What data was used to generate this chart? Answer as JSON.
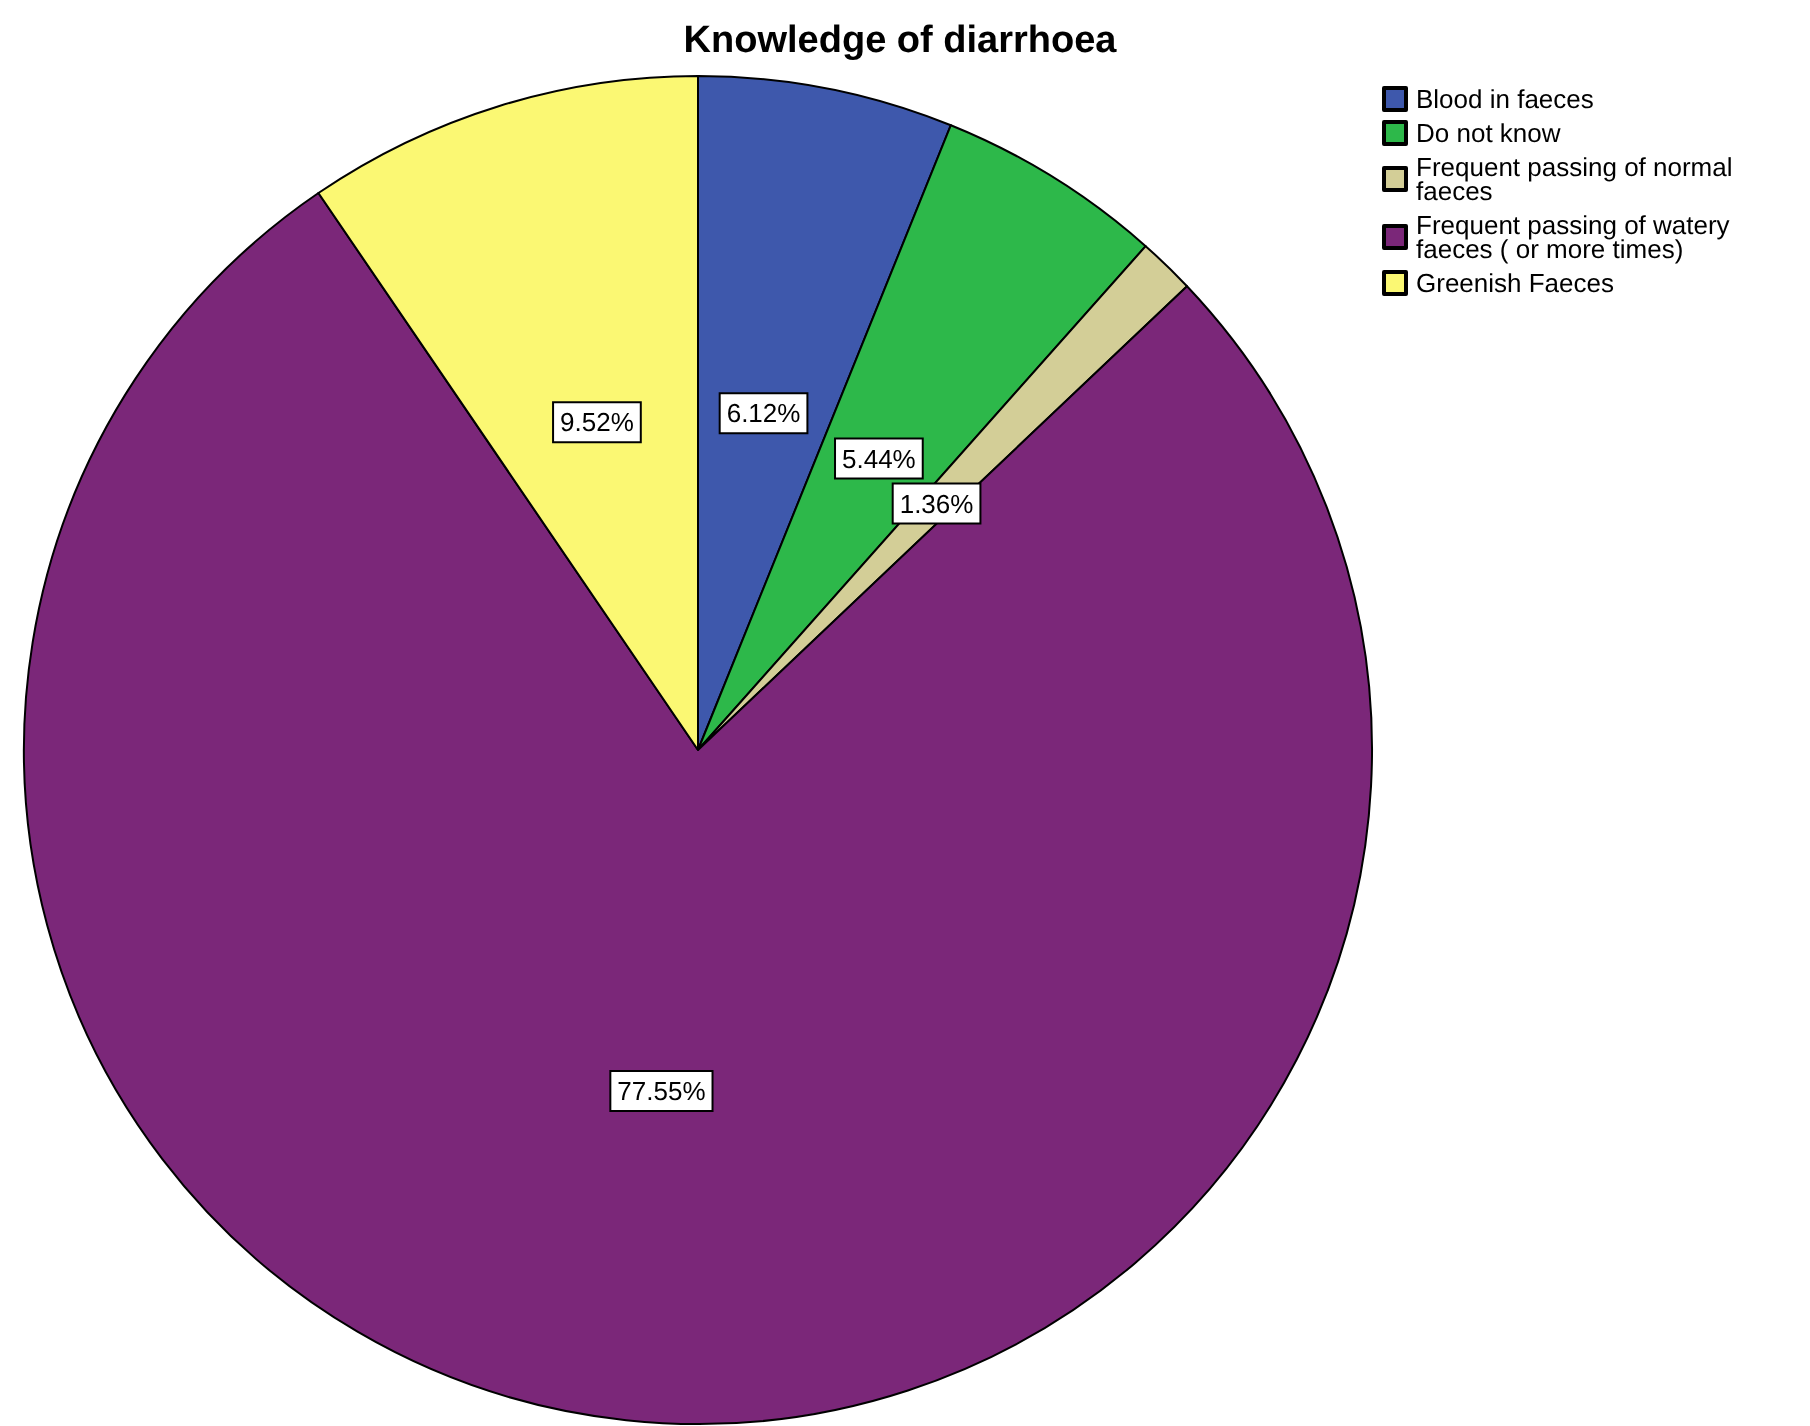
{
  "chart_data": {
    "type": "pie",
    "title": "Knowledge of diarrhoea",
    "categories": [
      "Blood in faeces",
      "Do not know",
      "Frequent passing of normal faeces",
      "Frequent passing of watery faeces ( or more times)",
      "Greenish Faeces"
    ],
    "values": [
      6.12,
      5.44,
      1.36,
      77.55,
      9.52
    ],
    "value_labels": [
      "6.12%",
      "5.44%",
      "1.36%",
      "77.55%",
      "9.52%"
    ],
    "colors": [
      "#3e58ac",
      "#2db84a",
      "#d3ce97",
      "#7b2779",
      "#fbf873"
    ],
    "legend": "top right"
  }
}
